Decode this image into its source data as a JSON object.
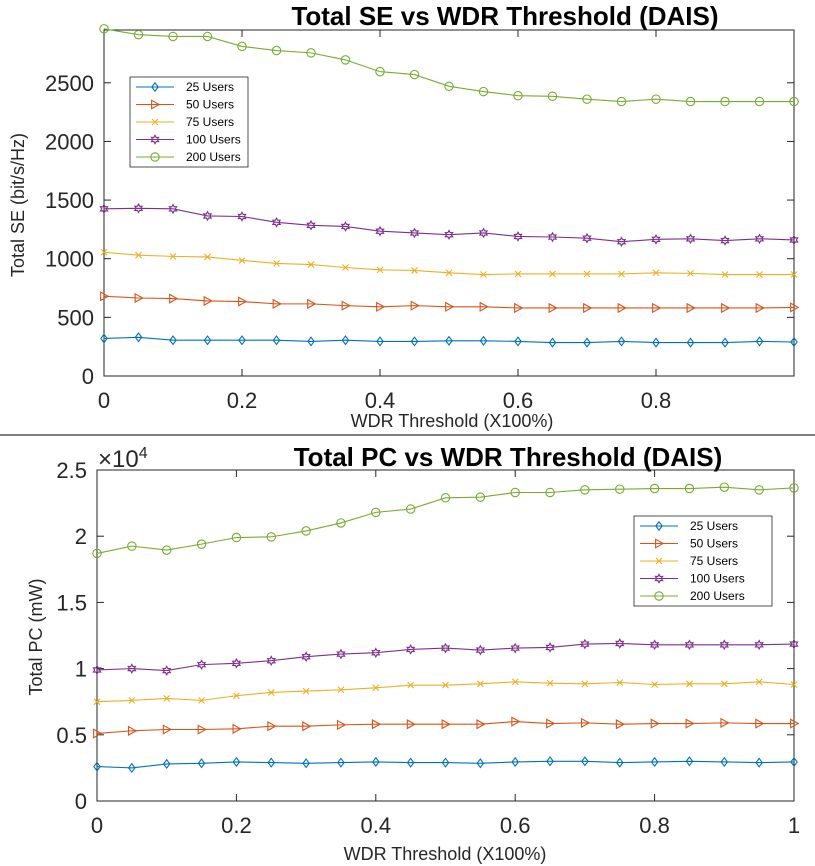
{
  "colors": {
    "25 Users": "#0072BD",
    "50 Users": "#D95319",
    "75 Users": "#EDB120",
    "100 Users": "#7E2F8E",
    "200 Users": "#77AC30"
  },
  "chart_data": [
    {
      "type": "line",
      "title": "Total SE vs WDR Threshold (DAIS)",
      "xlabel": "WDR Threshold (X100%)",
      "ylabel": "Total SE (bit/s/Hz)",
      "xlim": [
        0,
        1.0
      ],
      "ylim": [
        0,
        2950
      ],
      "xticks": [
        0,
        0.2,
        0.4,
        0.6,
        0.8
      ],
      "xtick_labels": [
        "0",
        "0.2",
        "0.4",
        "0.6",
        "0.8"
      ],
      "yticks": [
        0,
        500,
        1000,
        1500,
        2000,
        2500
      ],
      "ytick_labels": [
        "0",
        "500",
        "1000",
        "1500",
        "2000",
        "2500"
      ],
      "legend_position": "top-left",
      "x": [
        0,
        0.05,
        0.1,
        0.15,
        0.2,
        0.25,
        0.3,
        0.35,
        0.4,
        0.45,
        0.5,
        0.55,
        0.6,
        0.65,
        0.7,
        0.75,
        0.8,
        0.85,
        0.9,
        0.95,
        1.0
      ],
      "series": [
        {
          "name": "25 Users",
          "marker": "diamond",
          "values": [
            320,
            330,
            305,
            305,
            305,
            305,
            295,
            305,
            295,
            295,
            300,
            300,
            295,
            285,
            285,
            295,
            285,
            285,
            285,
            295,
            290
          ]
        },
        {
          "name": "50 Users",
          "marker": "triangle-right",
          "values": [
            680,
            665,
            660,
            640,
            635,
            615,
            615,
            600,
            590,
            600,
            590,
            590,
            580,
            580,
            580,
            580,
            580,
            580,
            580,
            580,
            585
          ]
        },
        {
          "name": "75 Users",
          "marker": "x",
          "values": [
            1055,
            1030,
            1020,
            1015,
            985,
            960,
            950,
            925,
            905,
            900,
            880,
            865,
            870,
            870,
            870,
            870,
            880,
            875,
            865,
            865,
            865
          ]
        },
        {
          "name": "100 Users",
          "marker": "hexagram",
          "values": [
            1425,
            1430,
            1425,
            1365,
            1360,
            1310,
            1285,
            1275,
            1235,
            1220,
            1205,
            1220,
            1190,
            1185,
            1175,
            1145,
            1165,
            1170,
            1155,
            1170,
            1160
          ]
        },
        {
          "name": "200 Users",
          "marker": "circle",
          "values": [
            2960,
            2910,
            2895,
            2895,
            2810,
            2775,
            2755,
            2695,
            2595,
            2570,
            2470,
            2425,
            2390,
            2385,
            2360,
            2340,
            2360,
            2340,
            2340,
            2340,
            2340
          ]
        }
      ]
    },
    {
      "type": "line",
      "title": "Total PC vs WDR Threshold (DAIS)",
      "xlabel": "WDR Threshold (X100%)",
      "ylabel": "Total PC (mW)",
      "exponent_label": "×10",
      "exponent_power": "4",
      "xlim": [
        0,
        1
      ],
      "ylim": [
        0,
        25000
      ],
      "xticks": [
        0,
        0.2,
        0.4,
        0.6,
        0.8,
        1
      ],
      "xtick_labels": [
        "0",
        "0.2",
        "0.4",
        "0.6",
        "0.8",
        "1"
      ],
      "yticks": [
        0,
        5000,
        10000,
        15000,
        20000,
        25000
      ],
      "ytick_labels": [
        "0",
        "0.5",
        "1",
        "1.5",
        "2",
        "2.5"
      ],
      "legend_position": "top-right",
      "x": [
        0,
        0.05,
        0.1,
        0.15,
        0.2,
        0.25,
        0.3,
        0.35,
        0.4,
        0.45,
        0.5,
        0.55,
        0.6,
        0.65,
        0.7,
        0.75,
        0.8,
        0.85,
        0.9,
        0.95,
        1.0
      ],
      "series": [
        {
          "name": "25 Users",
          "marker": "diamond",
          "values": [
            2600,
            2500,
            2800,
            2850,
            2950,
            2900,
            2850,
            2900,
            2950,
            2900,
            2900,
            2850,
            2950,
            3000,
            3000,
            2900,
            2950,
            3000,
            2950,
            2900,
            2950
          ]
        },
        {
          "name": "50 Users",
          "marker": "triangle-right",
          "values": [
            5100,
            5300,
            5400,
            5400,
            5450,
            5650,
            5650,
            5750,
            5800,
            5800,
            5800,
            5800,
            6000,
            5850,
            5900,
            5800,
            5850,
            5850,
            5900,
            5850,
            5850
          ]
        },
        {
          "name": "75 Users",
          "marker": "x",
          "values": [
            7500,
            7600,
            7750,
            7600,
            7950,
            8200,
            8300,
            8400,
            8550,
            8750,
            8750,
            8850,
            9000,
            8900,
            8850,
            8950,
            8800,
            8850,
            8850,
            9000,
            8800
          ]
        },
        {
          "name": "100 Users",
          "marker": "hexagram",
          "values": [
            9900,
            10000,
            9850,
            10300,
            10400,
            10600,
            10900,
            11100,
            11200,
            11450,
            11550,
            11400,
            11550,
            11600,
            11850,
            11900,
            11800,
            11800,
            11800,
            11800,
            11850
          ]
        },
        {
          "name": "200 Users",
          "marker": "circle",
          "values": [
            18700,
            19250,
            18950,
            19400,
            19900,
            19950,
            20400,
            21000,
            21800,
            22050,
            22900,
            22950,
            23300,
            23300,
            23500,
            23550,
            23600,
            23600,
            23700,
            23500,
            23650
          ]
        }
      ]
    }
  ]
}
